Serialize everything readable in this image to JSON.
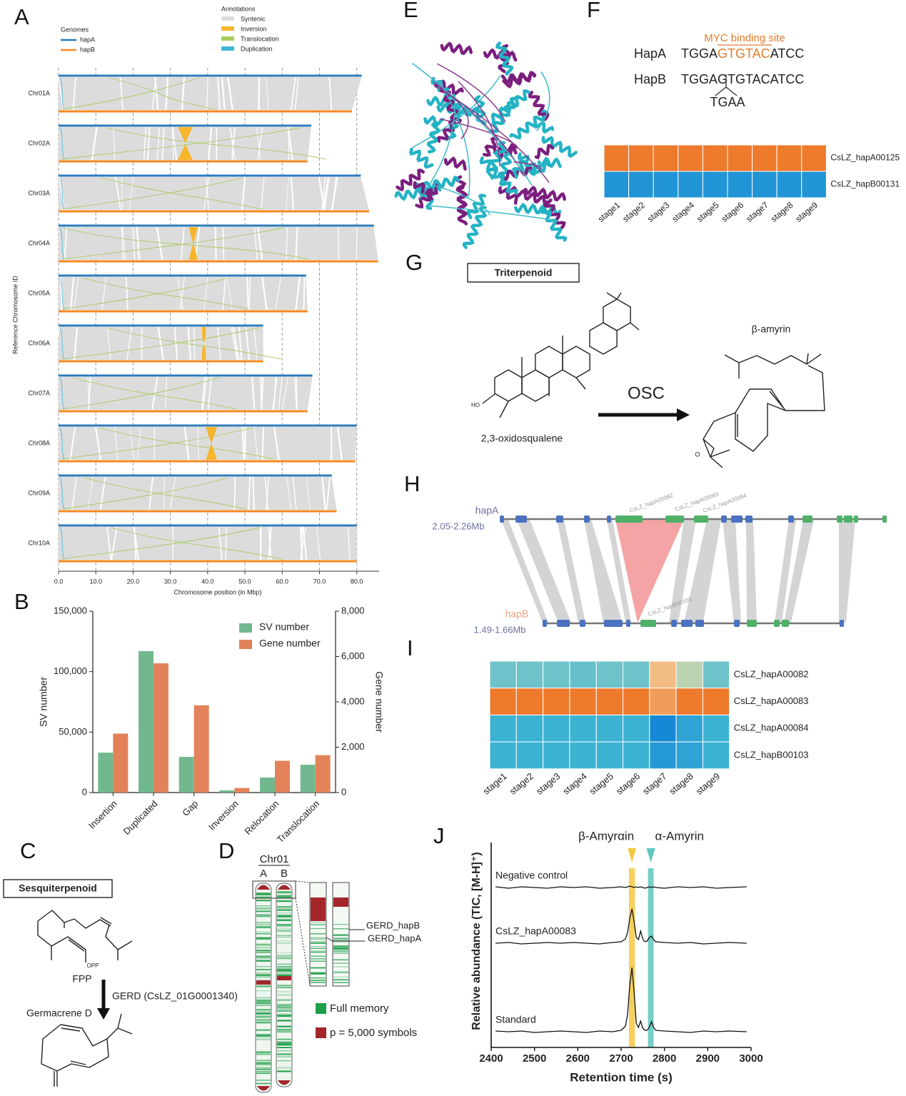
{
  "panel_labels": [
    "A",
    "B",
    "C",
    "D",
    "E",
    "F",
    "G",
    "H",
    "I",
    "J"
  ],
  "chart_data": [
    {
      "type": "synteny",
      "xlabel": "Chromosome position (in Mbp)",
      "ylabel": "Reference Chromosome ID",
      "genomes_title": "Genomes",
      "annotations_title": "Annotations",
      "annotations": [
        {
          "name": "Syntenic",
          "color": "#dcdcdc"
        },
        {
          "name": "Inversion",
          "color": "#f7b52c"
        },
        {
          "name": "Translocation",
          "color": "#a9cb5e"
        },
        {
          "name": "Duplication",
          "color": "#41b6d9"
        }
      ],
      "categories": [
        "Chr01A",
        "Chr02A",
        "Chr03A",
        "Chr04A",
        "Chr05A",
        "Chr06A",
        "Chr07A",
        "Chr08A",
        "Chr09A",
        "Chr10A"
      ],
      "series": [
        {
          "name": "hapA",
          "color": "#2b7bba",
          "values": [
            81.3,
            67.8,
            81.1,
            84.6,
            66.4,
            54.9,
            68.1,
            80.0,
            73.3,
            80.0
          ]
        },
        {
          "name": "hapB",
          "color": "#f5881f",
          "values": [
            78.7,
            66.8,
            83.3,
            85.7,
            66.8,
            54.9,
            66.8,
            79.6,
            74.6,
            80.0
          ]
        }
      ],
      "inversion_start": [
        null,
        32,
        null,
        35,
        null,
        38.5,
        null,
        39.5,
        null,
        null
      ],
      "inversion_end": [
        null,
        36,
        null,
        37.3,
        null,
        39.5,
        null,
        42.5,
        null,
        null
      ],
      "xlim": [
        0,
        86
      ],
      "xticks": [
        {
          "value": 0,
          "label": "0.0"
        },
        {
          "value": 10,
          "label": "10.0"
        },
        {
          "value": 20,
          "label": "20.0"
        },
        {
          "value": 30,
          "label": "30.0"
        },
        {
          "value": 40,
          "label": "40.0"
        },
        {
          "value": 50,
          "label": "50.0"
        },
        {
          "value": 60,
          "label": "60.0"
        },
        {
          "value": 70,
          "label": "70.0"
        },
        {
          "value": 80,
          "label": "80.0"
        }
      ],
      "grid": true
    },
    {
      "type": "bar",
      "ylabel": "SV number",
      "y2label": "Gene number",
      "categories": [
        "Insertion",
        "Duplicated",
        "Gap",
        "Inversion",
        "Relocation",
        "Translocation"
      ],
      "series": [
        {
          "name": "SV number",
          "color": "#72b88e",
          "values": [
            33000,
            117000,
            29500,
            1800,
            12400,
            23000
          ]
        },
        {
          "name": "Gene number",
          "color": "#e3825a",
          "axis": "y2",
          "values": [
            2600,
            5700,
            3850,
            200,
            1400,
            1650
          ]
        }
      ],
      "ylim": [
        0,
        150000
      ],
      "yticks": [
        0,
        {
          "value": 50000,
          "label": "50,000"
        },
        {
          "value": 100000,
          "label": "100,000"
        },
        {
          "value": 150000,
          "label": "150,000"
        }
      ],
      "y2lim": [
        0,
        8000
      ],
      "y2ticks": [
        0,
        {
          "value": 2000,
          "label": "2,000"
        },
        {
          "value": 4000,
          "label": "4,000"
        },
        {
          "value": 6000,
          "label": "6,000"
        },
        {
          "value": 8000,
          "label": "8,000"
        }
      ],
      "legend": "top-right"
    },
    {
      "type": "heatmap",
      "rows": [
        "CsLZ_hapA00125",
        "CsLZ_hapB00131"
      ],
      "columns": [
        "stage1",
        "stage2",
        "stage3",
        "stage4",
        "stage5",
        "stage6",
        "stage7",
        "stage8",
        "stage9"
      ],
      "values": [
        [
          1,
          1,
          1,
          1,
          1,
          1,
          1,
          1,
          1
        ],
        [
          -0.9,
          -0.9,
          -0.9,
          -0.9,
          -0.9,
          -0.9,
          -0.9,
          -0.9,
          -0.9
        ]
      ],
      "colorscale": [
        [
          -1,
          "#1689d6"
        ],
        [
          -0.6,
          "#3cb3d3"
        ],
        [
          -0.3,
          "#6ec3ca"
        ],
        [
          0,
          "#a9d8bc"
        ],
        [
          0.4,
          "#f2c38c"
        ],
        [
          0.7,
          "#ef9f5c"
        ],
        [
          1,
          "#ee7a2c"
        ]
      ]
    },
    {
      "type": "heatmap",
      "rows": [
        "CsLZ_hapA00082",
        "CsLZ_hapA00083",
        "CsLZ_hapA00084",
        "CsLZ_hapB00103"
      ],
      "columns": [
        "stage1",
        "stage2",
        "stage3",
        "stage4",
        "stage5",
        "stage6",
        "stage7",
        "stage8",
        "stage9"
      ],
      "values": [
        [
          -0.3,
          -0.3,
          -0.3,
          -0.35,
          -0.3,
          -0.3,
          0.45,
          0.1,
          -0.3
        ],
        [
          1,
          1,
          1,
          1,
          1,
          1,
          0.72,
          1,
          1
        ],
        [
          -0.6,
          -0.6,
          -0.6,
          -0.6,
          -0.6,
          -0.6,
          -1,
          -0.75,
          -0.6
        ],
        [
          -0.6,
          -0.6,
          -0.6,
          -0.6,
          -0.6,
          -0.6,
          -0.85,
          -0.75,
          -0.6
        ]
      ],
      "colorscale": [
        [
          -1,
          "#1689d6"
        ],
        [
          -0.6,
          "#3cb3d3"
        ],
        [
          -0.3,
          "#6ec3ca"
        ],
        [
          0,
          "#a9d8bc"
        ],
        [
          0.4,
          "#f2c38c"
        ],
        [
          0.7,
          "#ef9f5c"
        ],
        [
          1,
          "#ee7a2c"
        ]
      ]
    },
    {
      "type": "line",
      "xlabel": "Retention time (s)",
      "ylabel": "Relative abundance (TIC, [M-H]⁺)",
      "x": [
        2410,
        2440,
        2470,
        2500,
        2530,
        2560,
        2590,
        2620,
        2650,
        2680,
        2700,
        2710,
        2715,
        2720,
        2725,
        2730,
        2735,
        2740,
        2745,
        2750,
        2755,
        2760,
        2765,
        2770,
        2775,
        2780,
        2800,
        2830,
        2860,
        2890,
        2920,
        2950,
        2990
      ],
      "series": [
        {
          "name": "Negative control",
          "color": "#111111",
          "values": [
            0.1,
            -0.1,
            0.1,
            0,
            -0.1,
            0.1,
            0,
            0.1,
            -0.1,
            0,
            0.1,
            0,
            0.1,
            0.2,
            0.1,
            0,
            0.1,
            0,
            0.1,
            0,
            -0.1,
            0,
            0.1,
            0,
            0.1,
            0,
            -0.1,
            0.1,
            0,
            0.1,
            -0.1,
            0,
            0.1
          ]
        },
        {
          "name": "CsLZ_hapA00083",
          "color": "#111111",
          "values": [
            0,
            0.1,
            -0.1,
            0,
            0.1,
            0,
            0.1,
            0,
            -0.1,
            0.1,
            0.2,
            0.6,
            1.5,
            3.5,
            4.8,
            3,
            0.8,
            0.5,
            1.7,
            0.6,
            0.2,
            0.3,
            0.8,
            1,
            0.5,
            0.2,
            0.1,
            0,
            0.1,
            -0.1,
            0,
            0.1,
            0
          ]
        },
        {
          "name": "Standard",
          "color": "#111111",
          "values": [
            0.1,
            0,
            0.1,
            -0.1,
            0,
            0.1,
            0,
            -0.1,
            0.1,
            0,
            0.2,
            0.8,
            2.5,
            6.5,
            9,
            5.5,
            1.2,
            0.6,
            1.5,
            0.5,
            0.2,
            0.2,
            0.6,
            1.4,
            0.6,
            0.2,
            0.1,
            0,
            -0.1,
            0.1,
            0,
            0.1,
            0
          ]
        }
      ],
      "highlights": [
        {
          "text": "β-Amyrαin",
          "x0": 2718,
          "x1": 2732,
          "color": "#f5c842"
        },
        {
          "text": "α-Amyrin",
          "x0": 2762,
          "x1": 2775,
          "color": "#5cc8c0"
        }
      ],
      "xlim": [
        2400,
        3000
      ],
      "xticks": [
        2400,
        2500,
        2600,
        2700,
        2800,
        2900,
        3000
      ]
    }
  ],
  "pathway": {
    "title": "Sesquiterpenoid",
    "substrate": "FPP",
    "group": "OPP",
    "enzyme": "GERD (CsLZ_01G0001340)",
    "product": "Germacrene D"
  },
  "karyotype": {
    "chromosome": "Chr01",
    "haplotypes": [
      "A",
      "B"
    ],
    "genes": [
      "GERD_hapB",
      "GERD_hapA"
    ],
    "legend": [
      {
        "name": "Full memory",
        "color": "#1e9e4a"
      },
      {
        "name": "p = 5,000 symbols",
        "color": "#a3262b"
      }
    ]
  },
  "sequence": {
    "motif_label": "MYC binding site",
    "hapA_label": "HapA",
    "hapA_sequence": [
      "TGGA",
      "GTGTAC",
      "ATCC"
    ],
    "hapB_label": "HapB",
    "hapB_sequence": "TGGAGTGTACATCC",
    "insertion": "TGAA"
  },
  "triterpenoid": {
    "title": "Triterpenoid",
    "product": "β-amyrin",
    "enzyme": "OSC",
    "substrate": "2,3-oxidosqualene",
    "hydroxyl": "HO",
    "oxygen": "O"
  },
  "gene_synteny": {
    "top_name": "hapA",
    "top_range": "2.05-2.26Mb",
    "bottom_name": "hapB",
    "bottom_range": "1.49-1.66Mb",
    "genes": [
      "CsLZ_hapA00082",
      "CsLZ_hapA00083",
      "CsLZ_hapA00084",
      "CsLZ_hapB00103"
    ]
  }
}
